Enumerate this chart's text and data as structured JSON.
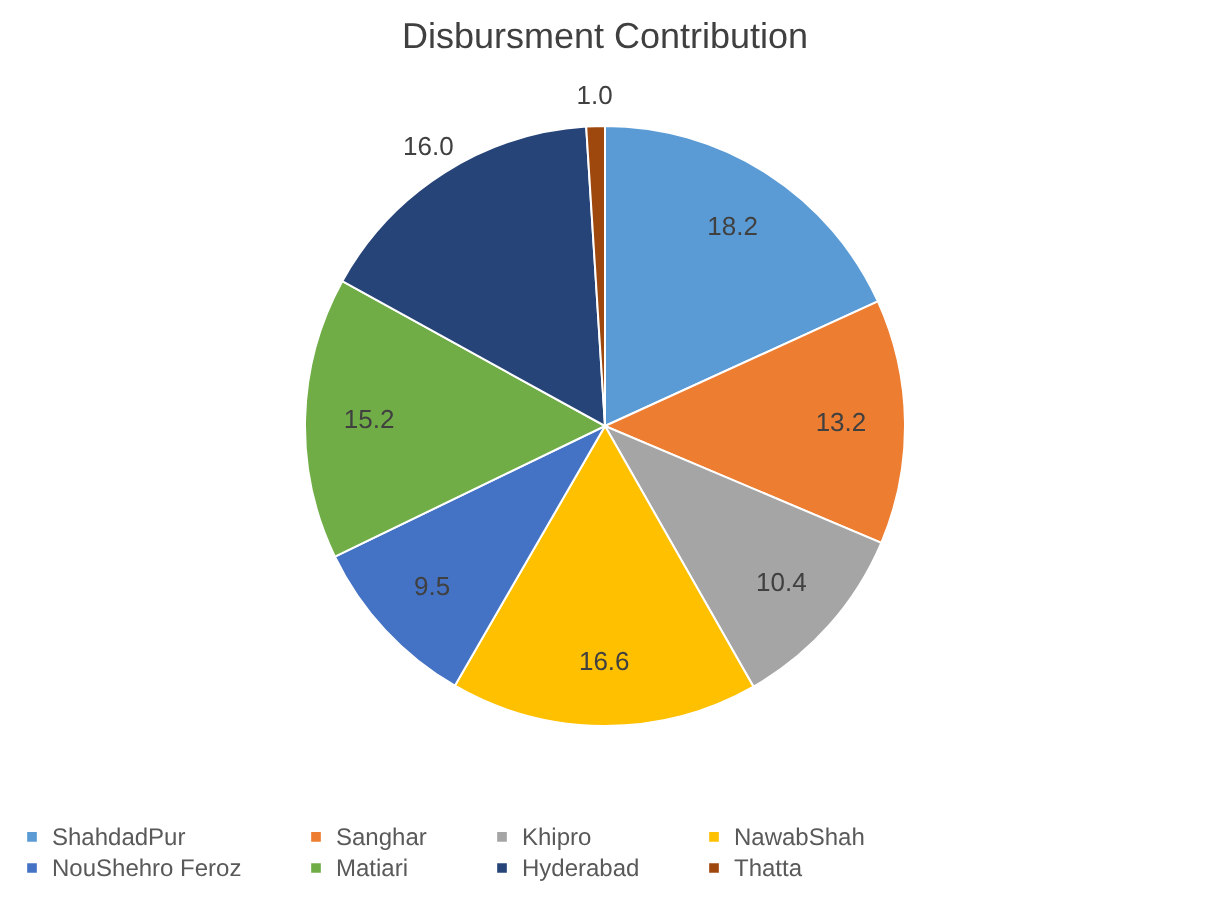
{
  "chart_data": {
    "type": "pie",
    "title": "Disbursment Contribution",
    "categories": [
      "ShahdadPur",
      "Sanghar",
      "Khipro",
      "NawabShah",
      "NouShehro Feroz",
      "Matiari",
      "Hyderabad",
      "Thatta"
    ],
    "values": [
      18.2,
      13.2,
      10.4,
      16.6,
      9.5,
      15.2,
      16.0,
      1.0
    ],
    "colors": [
      "#5b9bd5",
      "#ed7d31",
      "#a5a5a5",
      "#ffc000",
      "#4472c4",
      "#70ad47",
      "#264478",
      "#9e480e"
    ],
    "value_labels": [
      "18.2",
      "13.2",
      "10.4",
      "16.6",
      "9.5",
      "15.2",
      "16.0",
      "1.0"
    ],
    "legend": "bottom"
  }
}
